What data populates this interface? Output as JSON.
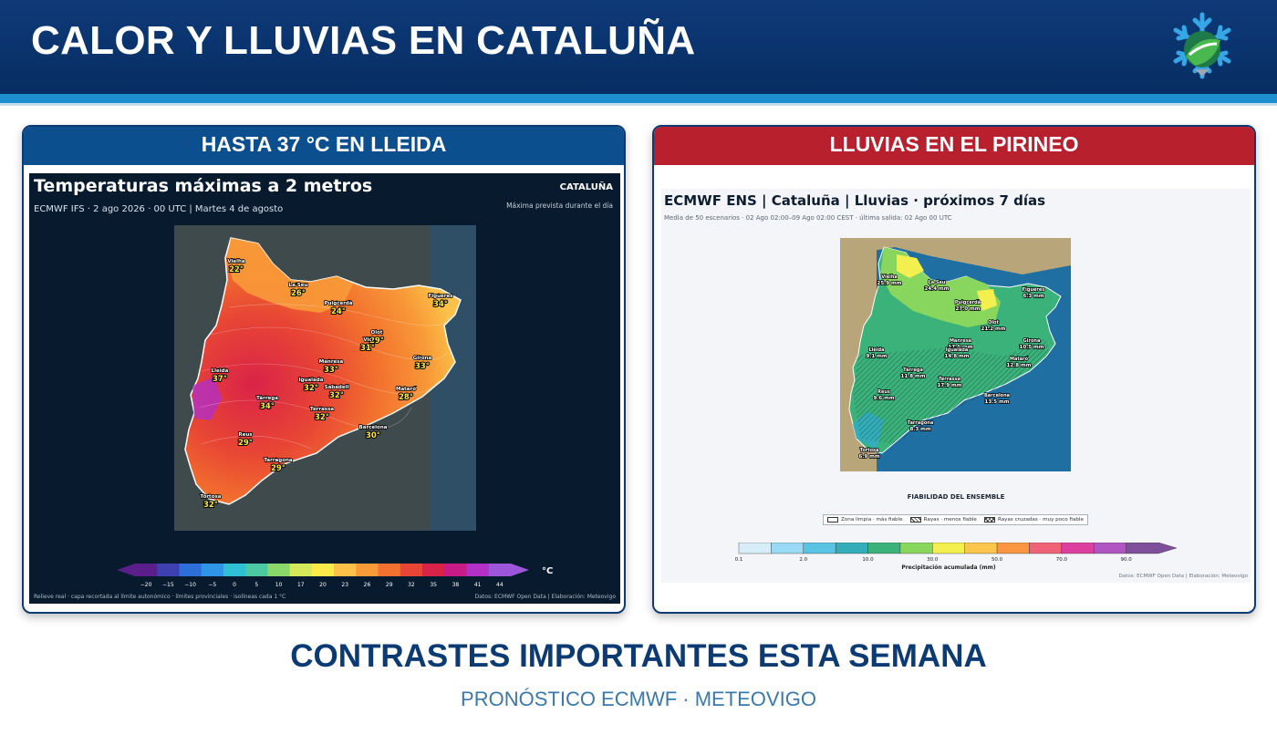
{
  "header": {
    "title": "CALOR Y LLUVIAS EN CATALUÑA",
    "logo_icon": "snowflake-mountain-logo-icon",
    "colors": {
      "background": "#0b3670",
      "stripe": "#1d8fd0"
    }
  },
  "panel_left": {
    "heading": "HASTA 37 °C EN LLEIDA",
    "header_color": "#0c4f8e",
    "map": {
      "title": "Temperaturas máximas a 2 metros",
      "subtitle": "ECMWF IFS · 2 ago 2026 · 00 UTC  |  Martes 4 de agosto",
      "region": "CATALUÑA",
      "note": "Máxima prevista durante el día",
      "cities": [
        {
          "name": "Vielha",
          "value": "22°"
        },
        {
          "name": "La Seu",
          "value": "26°"
        },
        {
          "name": "Puigcerdà",
          "value": "24°"
        },
        {
          "name": "Figueres",
          "value": "34°"
        },
        {
          "name": "Olot",
          "value": "29°"
        },
        {
          "name": "Vic",
          "value": "31°"
        },
        {
          "name": "Manresa",
          "value": "33°"
        },
        {
          "name": "Girona",
          "value": "33°"
        },
        {
          "name": "Lleida",
          "value": "37°"
        },
        {
          "name": "Igualada",
          "value": "32°"
        },
        {
          "name": "Sabadell",
          "value": "32°"
        },
        {
          "name": "Mataró",
          "value": "28°"
        },
        {
          "name": "Tàrrega",
          "value": "34°"
        },
        {
          "name": "Terrassa",
          "value": "32°"
        },
        {
          "name": "Reus",
          "value": "29°"
        },
        {
          "name": "Barcelona",
          "value": "30°"
        },
        {
          "name": "Tarragona",
          "value": "29°"
        },
        {
          "name": "Tortosa",
          "value": "32°"
        }
      ],
      "colorbar": {
        "ticks": [
          "−20",
          "−15",
          "−10",
          "−5",
          "0",
          "5",
          "10",
          "17",
          "20",
          "23",
          "26",
          "29",
          "32",
          "35",
          "38",
          "41",
          "44"
        ],
        "colors": [
          "#5b1f8c",
          "#3e3fb0",
          "#2d6ed8",
          "#2f95e6",
          "#2fc0d6",
          "#4cc9a0",
          "#8bd86a",
          "#d4e85a",
          "#fce94a",
          "#fcc148",
          "#f89a38",
          "#f2712e",
          "#e84634",
          "#d92348",
          "#c81b86",
          "#b330c6",
          "#9d55da"
        ],
        "unit": "°C"
      },
      "footer_left": "Relieve real · capa recortada al límite autonómico · límites provinciales · isolíneas cada 1 °C",
      "footer_right": "Datos: ECMWF Open Data | Elaboración: Meteovigo"
    }
  },
  "panel_right": {
    "heading": "LLUVIAS EN EL PIRINEO",
    "header_color": "#b8202e",
    "map": {
      "title": "ECMWF ENS | Cataluña | Lluvias · próximos 7 días",
      "subtitle": "Media de 50 escenarios · 02 Ago 02:00–09 Ago 02:00 CEST · última salida: 02 Ago 00 UTC",
      "cities": [
        {
          "name": "Vielha",
          "value": "25.9 mm"
        },
        {
          "name": "La Seu",
          "value": "24.4 mm"
        },
        {
          "name": "Puigcerdà",
          "value": "27.0 mm"
        },
        {
          "name": "Figueres",
          "value": "6.3 mm"
        },
        {
          "name": "Olot",
          "value": "21.2 mm"
        },
        {
          "name": "Manresa",
          "value": "17.6 mm"
        },
        {
          "name": "Girona",
          "value": "10.5 mm"
        },
        {
          "name": "Lleida",
          "value": "9.1 mm"
        },
        {
          "name": "Igualada",
          "value": "14.8 mm"
        },
        {
          "name": "Mataró",
          "value": "12.8 mm"
        },
        {
          "name": "Tàrrega",
          "value": "11.8 mm"
        },
        {
          "name": "Terrassa",
          "value": "17.9 mm"
        },
        {
          "name": "Reus",
          "value": "9.6 mm"
        },
        {
          "name": "Barcelona",
          "value": "13.5 mm"
        },
        {
          "name": "Tarragona",
          "value": "8.3 mm"
        },
        {
          "name": "Tortosa",
          "value": "6.9 mm"
        }
      ],
      "reliability": {
        "title": "FIABILIDAD DEL ENSEMBLE",
        "items": [
          {
            "label": "Zona limpia · más fiable",
            "pattern": "clean"
          },
          {
            "label": "Rayas · menos fiable",
            "pattern": "hatch"
          },
          {
            "label": "Rayas cruzadas · muy poco fiable",
            "pattern": "cross"
          }
        ]
      },
      "colorbar": {
        "ticks": [
          "0.1",
          "2.0",
          "10.0",
          "30.0",
          "50.0",
          "70.0",
          "90.0"
        ],
        "colors": [
          "#d7eef8",
          "#9ad9f3",
          "#5ac2e3",
          "#33aeb8",
          "#3bb27a",
          "#88d65e",
          "#f2ef4f",
          "#fcc54b",
          "#fb9542",
          "#f06275",
          "#dd3f9e",
          "#b056c2",
          "#7e4f9b"
        ],
        "label": "Precipitación acumulada (mm)"
      },
      "credit": "Datos: ECMWF Open Data | Elaboración: Meteovigo"
    }
  },
  "bottom": {
    "title": "CONTRASTES IMPORTANTES ESTA SEMANA",
    "subtitle": "PRONÓSTICO ECMWF · METEOVIGO",
    "title_color": "#0c3b73",
    "subtitle_color": "#3a79aa"
  }
}
